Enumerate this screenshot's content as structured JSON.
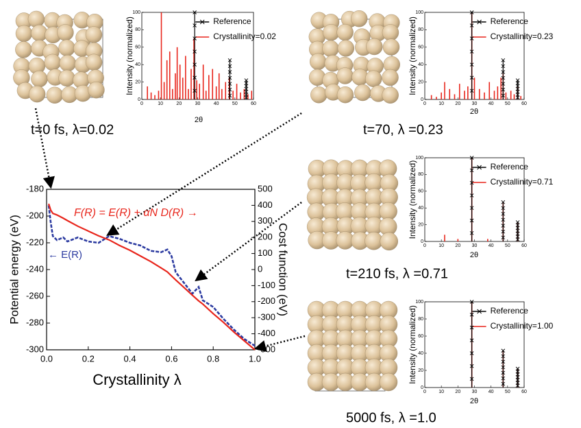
{
  "chart_data": [
    {
      "type": "line",
      "annotations": [
        "F(R) = E(R) + αN D(R) →",
        "← E(R)"
      ],
      "xlabel": "Crystallinity λ",
      "ylabel": "Potential energy (eV)",
      "y2label": "Cost function (eV)",
      "xlim": [
        0,
        1
      ],
      "xticks": [
        {
          "value": 0,
          "label": "0.0"
        },
        0.2,
        0.4,
        0.6,
        0.8,
        {
          "value": 1,
          "label": "1.0"
        }
      ],
      "ylim": [
        -300,
        -180
      ],
      "yticks": [
        -300,
        -280,
        -260,
        -240,
        -220,
        -200,
        -180
      ],
      "y2lim": [
        -500,
        500
      ],
      "y2ticks": [
        -500,
        -400,
        -300,
        -200,
        -100,
        0,
        100,
        200,
        300,
        400,
        500
      ],
      "x": [
        0.01,
        0.02,
        0.03,
        0.05,
        0.08,
        0.1,
        0.15,
        0.2,
        0.25,
        0.3,
        0.35,
        0.4,
        0.45,
        0.5,
        0.55,
        0.58,
        0.6,
        0.62,
        0.65,
        0.7,
        0.73,
        0.75,
        0.8,
        0.85,
        0.9,
        0.95,
        1.0
      ],
      "series": [
        {
          "color": "#2b3aa0",
          "dashed": true,
          "values": [
            -192,
            -205,
            -215,
            -218,
            -216,
            -219,
            -216,
            -219,
            -220,
            -215,
            -217,
            -220,
            -222,
            -226,
            -227,
            -225,
            -230,
            -242,
            -248,
            -258,
            -253,
            -263,
            -268,
            -277,
            -285,
            -292,
            -297
          ]
        },
        {
          "color": "#e8251b",
          "axis": "y2",
          "values": [
            410,
            370,
            350,
            340,
            320,
            305,
            270,
            240,
            210,
            185,
            150,
            120,
            85,
            50,
            10,
            -15,
            -40,
            -65,
            -100,
            -160,
            -195,
            -215,
            -275,
            -330,
            -390,
            -445,
            -500
          ]
        }
      ]
    },
    {
      "type": "bar",
      "caption": "t=0 fs, λ=0.02",
      "xlabel": "2θ",
      "ylabel": "Intensity (normalized)",
      "xlim": [
        0,
        60
      ],
      "xticks": [
        0,
        10,
        20,
        30,
        40,
        50,
        60
      ],
      "ylim": [
        0,
        100
      ],
      "yticks": [
        0,
        20,
        40,
        60,
        80,
        100
      ],
      "series": [
        {
          "name": "Reference",
          "color": "#000000",
          "x": [
            28.4,
            47.3,
            56.1
          ],
          "values": [
            100,
            45,
            22
          ]
        },
        {
          "name": "Crystallinity=0.02",
          "color": "#e8251b",
          "x": [
            3,
            5,
            7,
            9,
            10.5,
            12,
            13.5,
            15,
            16.5,
            18,
            19,
            20.5,
            22,
            23.5,
            25,
            26.5,
            28,
            29.5,
            31,
            33,
            34.5,
            36,
            38,
            40,
            41.5,
            43,
            45,
            47,
            49,
            51,
            53,
            55,
            57,
            59
          ],
          "values": [
            15,
            8,
            5,
            10,
            100,
            20,
            45,
            55,
            12,
            30,
            60,
            40,
            25,
            50,
            12,
            35,
            70,
            22,
            18,
            40,
            10,
            28,
            35,
            15,
            30,
            12,
            20,
            25,
            10,
            18,
            8,
            12,
            6,
            10
          ]
        }
      ]
    },
    {
      "type": "bar",
      "caption": "t=70, λ =0.23",
      "xlabel": "2θ",
      "ylabel": "Intensity (normalized)",
      "xlim": [
        0,
        60
      ],
      "xticks": [
        0,
        10,
        20,
        30,
        40,
        50,
        60
      ],
      "ylim": [
        0,
        100
      ],
      "yticks": [
        0,
        20,
        40,
        60,
        80,
        100
      ],
      "series": [
        {
          "name": "Reference",
          "color": "#000000",
          "x": [
            28.4,
            47.3,
            56.1
          ],
          "values": [
            100,
            45,
            22
          ]
        },
        {
          "name": "Crystallinity=0.23",
          "color": "#e8251b",
          "x": [
            4,
            7,
            10,
            12,
            15,
            18,
            21,
            24,
            26,
            28.4,
            30,
            33,
            36,
            39,
            42,
            44,
            46,
            47.3,
            49,
            52,
            54,
            56.1,
            58
          ],
          "values": [
            5,
            3,
            8,
            20,
            12,
            6,
            18,
            10,
            15,
            100,
            25,
            12,
            8,
            20,
            10,
            15,
            25,
            30,
            8,
            10,
            6,
            15,
            4
          ]
        }
      ]
    },
    {
      "type": "bar",
      "caption": "t=210 fs, λ =0.71",
      "xlabel": "2θ",
      "ylabel": "Intensity (normalized)",
      "xlim": [
        0,
        60
      ],
      "xticks": [
        0,
        10,
        20,
        30,
        40,
        50,
        60
      ],
      "ylim": [
        0,
        100
      ],
      "yticks": [
        0,
        20,
        40,
        60,
        80,
        100
      ],
      "series": [
        {
          "name": "Reference",
          "color": "#000000",
          "x": [
            28.4,
            47.3,
            56.1
          ],
          "values": [
            100,
            47,
            23
          ]
        },
        {
          "name": "Crystallinity=0.71",
          "color": "#e8251b",
          "x": [
            12,
            20,
            28.4,
            38,
            47.3,
            56.1
          ],
          "values": [
            8,
            3,
            100,
            3,
            47,
            23
          ]
        }
      ]
    },
    {
      "type": "bar",
      "caption": "5000 fs, λ =1.0",
      "xlabel": "2θ",
      "ylabel": "Intensity (normalized)",
      "xlim": [
        0,
        60
      ],
      "xticks": [
        0,
        10,
        20,
        30,
        40,
        50,
        60
      ],
      "ylim": [
        0,
        100
      ],
      "yticks": [
        0,
        20,
        40,
        60,
        80,
        100
      ],
      "series": [
        {
          "name": "Reference",
          "color": "#000000",
          "x": [
            28.4,
            47.3,
            56.1
          ],
          "values": [
            100,
            43,
            22
          ]
        },
        {
          "name": "Crystallinity=1.00",
          "color": "#e8251b",
          "x": [
            28.4,
            47.3,
            56.1
          ],
          "values": [
            100,
            43,
            22
          ]
        }
      ]
    }
  ]
}
